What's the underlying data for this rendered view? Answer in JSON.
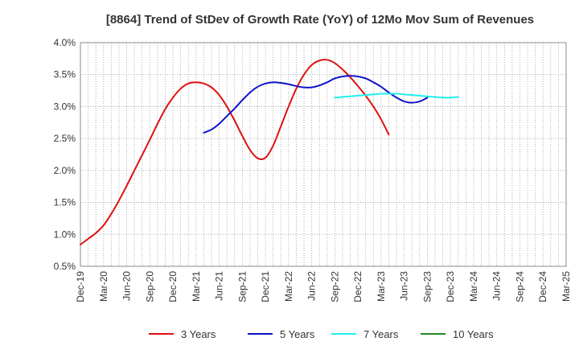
{
  "chart_data": {
    "type": "line",
    "title": "[8864]  Trend of StDev of Growth Rate (YoY) of 12Mo Mov Sum of Revenues",
    "xlabel": "",
    "ylabel": "",
    "ylim": [
      0.5,
      4.0
    ],
    "y_ticks": [
      {
        "value": 0.5,
        "label": "0.5%"
      },
      {
        "value": 1.0,
        "label": "1.0%"
      },
      {
        "value": 1.5,
        "label": "1.5%"
      },
      {
        "value": 2.0,
        "label": "2.0%"
      },
      {
        "value": 2.5,
        "label": "2.5%"
      },
      {
        "value": 3.0,
        "label": "3.0%"
      },
      {
        "value": 3.5,
        "label": "3.5%"
      },
      {
        "value": 4.0,
        "label": "4.0%"
      }
    ],
    "x_ticks": [
      "Dec-19",
      "Mar-20",
      "Jun-20",
      "Sep-20",
      "Dec-20",
      "Mar-21",
      "Jun-21",
      "Sep-21",
      "Dec-21",
      "Mar-22",
      "Jun-22",
      "Sep-22",
      "Dec-22",
      "Mar-23",
      "Jun-23",
      "Sep-23",
      "Dec-23",
      "Mar-24",
      "Jun-24",
      "Sep-24",
      "Dec-24",
      "Mar-25"
    ],
    "grid": true,
    "legend_position": "bottom",
    "series": [
      {
        "name": "3 Years",
        "color": "#dd1111",
        "start_index": 0,
        "values": [
          0.84,
          0.93,
          1.02,
          1.14,
          1.32,
          1.53,
          1.76,
          2.0,
          2.24,
          2.48,
          2.73,
          2.96,
          3.14,
          3.28,
          3.36,
          3.38,
          3.36,
          3.3,
          3.18,
          3.0,
          2.78,
          2.54,
          2.32,
          2.19,
          2.2,
          2.39,
          2.69,
          3.0,
          3.28,
          3.5,
          3.65,
          3.72,
          3.73,
          3.68,
          3.58,
          3.46,
          3.32,
          3.17,
          3.0,
          2.8,
          2.56
        ]
      },
      {
        "name": "5 Years",
        "color": "#1111cc",
        "start_index": 16,
        "values": [
          2.59,
          2.64,
          2.73,
          2.85,
          2.97,
          3.1,
          3.22,
          3.31,
          3.36,
          3.38,
          3.37,
          3.35,
          3.32,
          3.3,
          3.3,
          3.33,
          3.38,
          3.44,
          3.47,
          3.48,
          3.47,
          3.44,
          3.38,
          3.31,
          3.22,
          3.14,
          3.08,
          3.06,
          3.08,
          3.14
        ]
      },
      {
        "name": "7 Years",
        "color": "#22eeee",
        "start_index": 33,
        "values": [
          3.14,
          3.15,
          3.16,
          3.17,
          3.18,
          3.19,
          3.2,
          3.2,
          3.2,
          3.19,
          3.18,
          3.17,
          3.16,
          3.15,
          3.14,
          3.14,
          3.15
        ]
      },
      {
        "name": "10 Years",
        "color": "#228822",
        "start_index": 0,
        "values": []
      }
    ]
  }
}
